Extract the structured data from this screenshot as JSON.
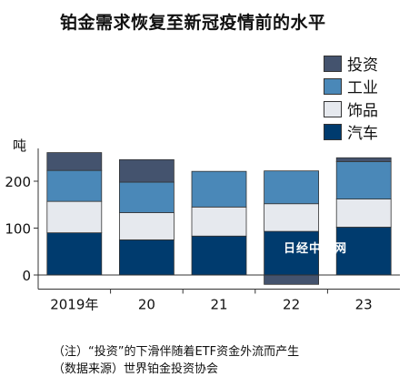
{
  "title": "铂金需求恢复至新冠疫情前的水平",
  "watermark": "日经中文网",
  "notes": [
    "（注）“投资”的下滑伴随着ETF资金外流而产生",
    "（数据来源）世界铂金投资协会"
  ],
  "colors": {
    "investment": "#44536e",
    "industrial": "#4a88b8",
    "jewelry": "#e6e9ee",
    "automotive": "#003b6e"
  },
  "chart_data": {
    "type": "bar",
    "stacked": true,
    "ylabel": "吨",
    "ylim": [
      -30,
      270
    ],
    "yticks": [
      0,
      100,
      200
    ],
    "categories": [
      "2019年",
      "20",
      "21",
      "22",
      "23"
    ],
    "legend_order": [
      "投资",
      "工业",
      "饰品",
      "汽车"
    ],
    "series": [
      {
        "name": "汽车",
        "color_key": "automotive",
        "values": [
          90,
          75,
          83,
          93,
          102
        ]
      },
      {
        "name": "饰品",
        "color_key": "jewelry",
        "values": [
          67,
          58,
          62,
          59,
          60
        ]
      },
      {
        "name": "工业",
        "color_key": "industrial",
        "values": [
          66,
          65,
          76,
          70,
          80
        ]
      },
      {
        "name": "投资",
        "color_key": "investment",
        "values": [
          38,
          48,
          0,
          -20,
          8
        ]
      }
    ],
    "grid": false,
    "legend_position": "top-right"
  }
}
